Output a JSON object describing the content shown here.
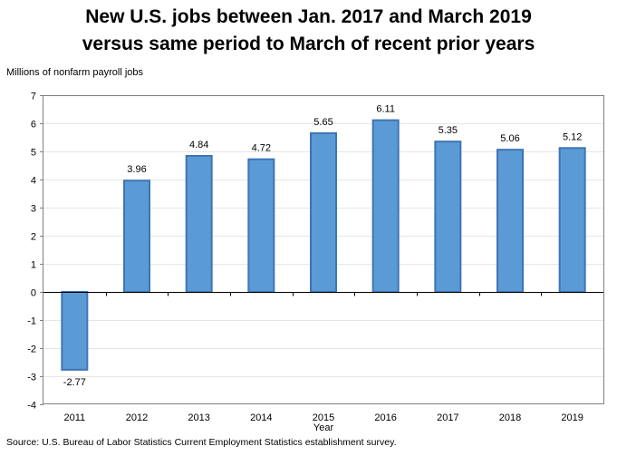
{
  "chart_data": {
    "type": "bar",
    "title": [
      "New U.S. jobs between Jan. 2017 and March 2019",
      "versus same period to March of recent prior years"
    ],
    "ylabel": "Millions of nonfarm payroll jobs",
    "xlabel": "Year",
    "categories": [
      "2011",
      "2012",
      "2013",
      "2014",
      "2015",
      "2016",
      "2017",
      "2018",
      "2019"
    ],
    "values": [
      -2.77,
      3.96,
      4.84,
      4.72,
      5.65,
      6.11,
      5.35,
      5.06,
      5.12
    ],
    "data_labels": [
      "-2.77",
      "3.96",
      "4.84",
      "4.72",
      "5.65",
      "6.11",
      "5.35",
      "5.06",
      "5.12"
    ],
    "ylim": [
      -4,
      7
    ],
    "yticks": [
      "-4",
      "-3",
      "-2",
      "-1",
      "0",
      "1",
      "2",
      "3",
      "4",
      "5",
      "6",
      "7"
    ],
    "grid": true,
    "colors": {
      "bar_fill": "#5b9bd5",
      "bar_stroke": "#3f74b5",
      "grid": "#e6e6e6"
    }
  },
  "source": "Source: U.S. Bureau of Labor Statistics Current Employment Statistics establishment survey."
}
